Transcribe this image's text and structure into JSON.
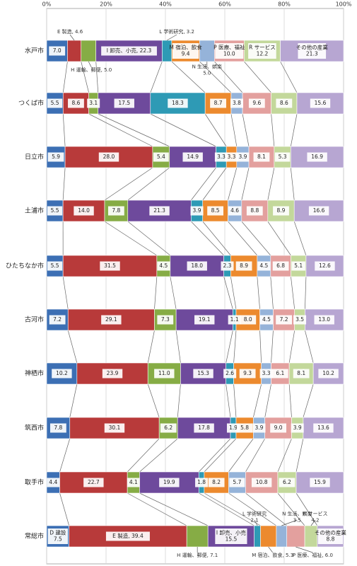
{
  "chart_data": {
    "type": "bar",
    "orientation": "horizontal",
    "stacked": true,
    "percent": true,
    "title": "",
    "xlabel": "",
    "ylabel": "",
    "xlim": [
      0,
      100
    ],
    "x_ticks": [
      "0%",
      "20%",
      "40%",
      "60%",
      "80%",
      "100%"
    ],
    "grid": true,
    "categories": [
      "水戸市",
      "つくば市",
      "日立市",
      "土浦市",
      "ひたちなか市",
      "古河市",
      "神栖市",
      "筑西市",
      "取手市",
      "常総市"
    ],
    "series": [
      {
        "name": "D 建設",
        "color": "#3c6fb4",
        "values": [
          7.0,
          5.5,
          5.9,
          5.5,
          5.5,
          7.2,
          10.2,
          7.8,
          4.4,
          7.5
        ]
      },
      {
        "name": "E 製造",
        "color": "#b83a3a",
        "values": [
          4.6,
          8.6,
          28.0,
          14.0,
          31.5,
          29.1,
          23.9,
          30.1,
          22.7,
          39.4
        ]
      },
      {
        "name": "H 運輸、郵便",
        "color": "#86ac45",
        "values": [
          5.0,
          3.1,
          5.4,
          7.8,
          4.5,
          7.3,
          11.0,
          6.2,
          4.1,
          7.1
        ]
      },
      {
        "name": "I 卸売、小売",
        "color": "#6e4a9c",
        "values": [
          22.3,
          17.5,
          14.9,
          21.3,
          18.0,
          19.1,
          15.3,
          17.8,
          19.9,
          15.5
        ]
      },
      {
        "name": "L 学術研究",
        "color": "#2e9ab5",
        "values": [
          3.2,
          18.3,
          3.3,
          3.9,
          2.3,
          1.1,
          2.6,
          1.9,
          1.8,
          2.1
        ]
      },
      {
        "name": "M 宿泊、飲食",
        "color": "#ec8a2e",
        "values": [
          9.4,
          8.7,
          3.3,
          8.5,
          8.9,
          8.0,
          9.3,
          5.8,
          8.2,
          5.3
        ]
      },
      {
        "name": "N 生活、娯楽",
        "color": "#95b3d9",
        "values": [
          5.0,
          3.8,
          3.9,
          4.6,
          4.5,
          4.5,
          3.3,
          3.9,
          5.7,
          3.5
        ]
      },
      {
        "name": "P 医療、福祉",
        "color": "#e3a09e",
        "values": [
          10.0,
          9.6,
          8.1,
          8.8,
          6.8,
          7.2,
          6.1,
          9.0,
          10.8,
          6.0
        ]
      },
      {
        "name": "R サービス",
        "color": "#c3d89b",
        "values": [
          12.2,
          8.6,
          5.3,
          8.9,
          5.1,
          3.5,
          8.1,
          3.9,
          6.2,
          4.2
        ]
      },
      {
        "name": "その他の産業",
        "color": "#b7a6d2",
        "values": [
          21.3,
          15.6,
          16.9,
          16.6,
          12.6,
          13.0,
          10.2,
          13.6,
          15.9,
          8.8
        ]
      }
    ],
    "segment_labels": [
      [
        "7.0",
        "",
        "",
        "I 卸売、小売, 22.3",
        "",
        "M 宿泊、飲食\n9.4",
        "",
        "P 医療、福祉\n10.0",
        "R サービス\n12.2",
        "その他の産業\n21.3"
      ],
      [
        "5.5",
        "8.6",
        "3.1",
        "17.5",
        "18.3",
        "8.7",
        "3.8",
        "9.6",
        "8.6",
        "15.6"
      ],
      [
        "5.9",
        "28.0",
        "5.4",
        "14.9",
        "3.3",
        "3.3",
        "3.9",
        "8.1",
        "5.3",
        "16.9"
      ],
      [
        "5.5",
        "14.0",
        "7.8",
        "21.3",
        "3.9",
        "8.5",
        "4.6",
        "8.8",
        "8.9",
        "16.6"
      ],
      [
        "5.5",
        "31.5",
        "4.5",
        "18.0",
        "2.3",
        "8.9",
        "4.5",
        "6.8",
        "5.1",
        "12.6"
      ],
      [
        "7.2",
        "29.1",
        "7.3",
        "19.1",
        "1.1",
        "8.0",
        "4.5",
        "7.2",
        "3.5",
        "13.0"
      ],
      [
        "10.2",
        "23.9",
        "11.0",
        "15.3",
        "2.6",
        "9.3",
        "3.3",
        "6.1",
        "8.1",
        "10.2"
      ],
      [
        "7.8",
        "30.1",
        "6.2",
        "17.8",
        "1.9",
        "5.8",
        "3.9",
        "9.0",
        "3.9",
        "13.6"
      ],
      [
        "4.4",
        "22.7",
        "4.1",
        "19.9",
        "1.8",
        "8.2",
        "5.7",
        "10.8",
        "6.2",
        "15.9"
      ],
      [
        "D 建設\n7.5",
        "E 製造, 39.4",
        "",
        "I 卸売、小売\n15.5",
        "",
        "",
        "",
        "",
        "",
        "その他の産業\n8.8"
      ]
    ],
    "annotations": {
      "mito_above": [
        "E 製造, 4.6",
        "L 学術研究, 3.2"
      ],
      "mito_below": [
        "H 運輸、郵便, 5.0",
        "N 生活、娯楽\n5.0"
      ],
      "joso_above": [
        "L 学術研究\n2.1",
        "N 生活、娯楽\n3.5",
        "R サービス\n4.2"
      ],
      "joso_below": [
        "H 運輸、郵便, 7.1",
        "M 宿泊、飲食, 5.3",
        "P 医療、福祉, 6.0"
      ]
    }
  }
}
